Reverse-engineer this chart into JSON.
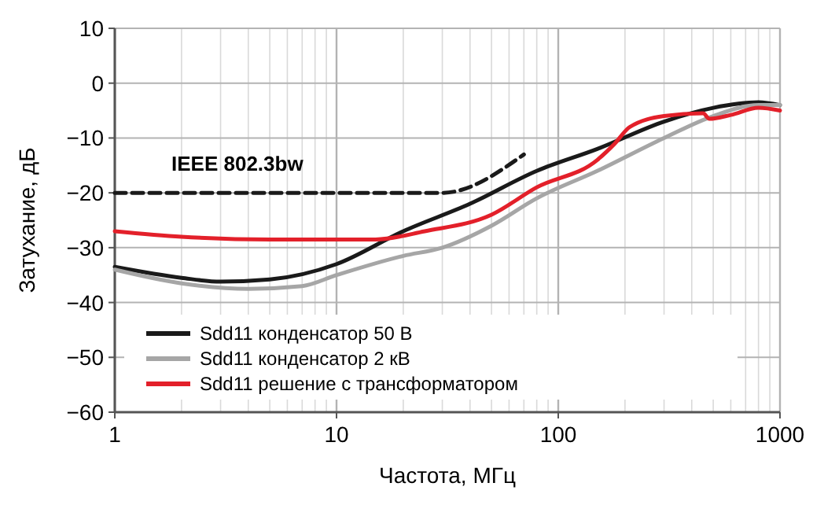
{
  "chart_data": {
    "type": "line",
    "xlabel": "Частота, МГц",
    "ylabel": "Затухание, дБ",
    "log": "x",
    "xlim": [
      1,
      1000
    ],
    "ylim": [
      -60,
      10
    ],
    "xticks": [
      1,
      10,
      100,
      1000
    ],
    "yticks": [
      -60,
      -50,
      -40,
      -30,
      -20,
      -10,
      0,
      10
    ],
    "grid": true,
    "legend": "bottom left",
    "series": [
      {
        "name": "IEEE 802.3bw",
        "color": "#1a1a1a",
        "line_style": "dashed",
        "x": [
          1,
          30,
          70
        ],
        "values": [
          -20,
          -20,
          -13
        ]
      },
      {
        "name": "Sdd11 конденсатор 50 В",
        "color": "#1a1a1a",
        "x": [
          1,
          2,
          3,
          5,
          10,
          20,
          40,
          80,
          150,
          300,
          500,
          800,
          1000
        ],
        "values": [
          -33.5,
          -35.5,
          -36.2,
          -35.8,
          -33,
          -27,
          -22,
          -16,
          -12,
          -7,
          -4.5,
          -3.5,
          -4
        ]
      },
      {
        "name": "Sdd11 конденсатор 2 кВ",
        "color": "#a6a6a6",
        "x": [
          1,
          2,
          4,
          7,
          10,
          20,
          30,
          50,
          80,
          150,
          300,
          500,
          800,
          1000
        ],
        "values": [
          -34,
          -36.5,
          -37.5,
          -37,
          -35,
          -31.5,
          -30,
          -26,
          -21,
          -16,
          -10,
          -6,
          -4,
          -4
        ]
      },
      {
        "name": "Sdd11 решение с трансформатором",
        "color": "#e3202a",
        "x": [
          1,
          2,
          5,
          15,
          25,
          50,
          80,
          150,
          180,
          210,
          300,
          450,
          480,
          600,
          800,
          1000
        ],
        "values": [
          -27,
          -28,
          -28.5,
          -28.5,
          -27,
          -24,
          -19,
          -14,
          -11,
          -8,
          -6,
          -5.5,
          -6.5,
          -5.8,
          -4.5,
          -5
        ]
      }
    ]
  }
}
